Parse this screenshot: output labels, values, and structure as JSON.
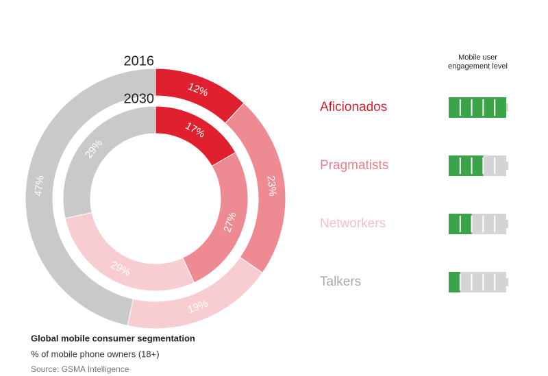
{
  "chart_data": {
    "type": "donut",
    "title": "Global mobile consumer segmentation",
    "subtitle": "% of mobile phone owners (18+)",
    "source": "Source: GSMA Intelligence",
    "categories": [
      "Aficionados",
      "Pragmatists",
      "Networkers",
      "Talkers"
    ],
    "colors": [
      "#e0202e",
      "#ee8a92",
      "#f7cdd1",
      "#c9c9cc"
    ],
    "legend_text_colors": [
      "#d81f2c",
      "#e9808a",
      "#f2c2c7",
      "#a9a9ad"
    ],
    "series": [
      {
        "name": "2016",
        "values": [
          12,
          23,
          19,
          47
        ],
        "value_labels": [
          "12%",
          "23%",
          "19%",
          "47%"
        ]
      },
      {
        "name": "2030",
        "values": [
          17,
          27,
          29,
          29
        ],
        "value_labels": [
          "17%",
          "27%",
          "29%",
          "29%"
        ]
      }
    ],
    "engagement": {
      "title": "Mobile user engagement level",
      "levels": [
        5,
        3,
        2,
        1
      ],
      "scale_max": 5,
      "color": "#3ba44b"
    }
  }
}
